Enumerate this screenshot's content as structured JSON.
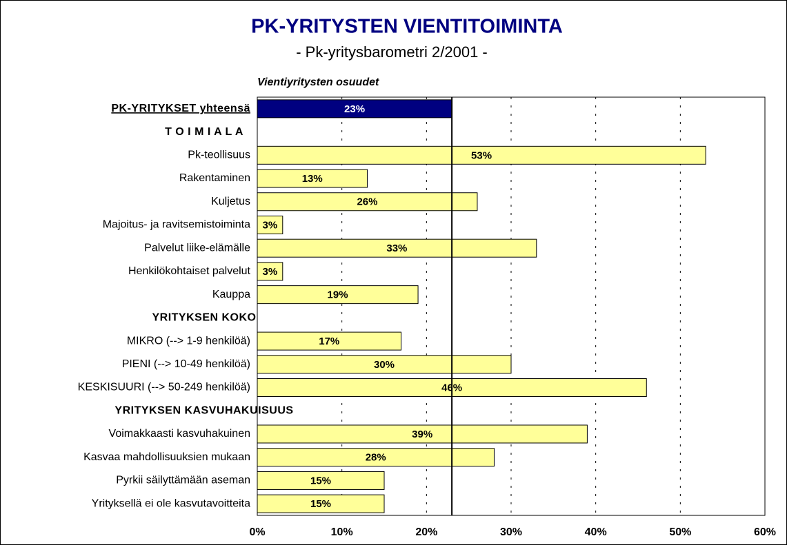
{
  "chart_data": {
    "type": "hbar",
    "title": "PK-YRITYSTEN VIENTITOIMINTA",
    "subtitle": "- Pk-yritysbarometri 2/2001 -",
    "axis_title": "Vientiyritysten osuudet",
    "categories": [
      "PK-YRITYKSET yhteensä",
      "T O I M I A L A",
      "Pk-teollisuus",
      "Rakentaminen",
      "Kuljetus",
      "Majoitus- ja ravitsemistoiminta",
      "Palvelut liike-elämälle",
      "Henkilökohtaiset palvelut",
      "Kauppa",
      "YRITYKSEN KOKO",
      "MIKRO (--> 1-9 henkilöä)",
      "PIENI (--> 10-49 henkilöä)",
      "KESKISUURI (--> 50-249 henkilöä)",
      "YRITYKSEN KASVUHAKUISUUS",
      "Voimakkaasti kasvuhakuinen",
      "Kasvaa mahdollisuuksien mukaan",
      "Pyrkii säilyttämään aseman",
      "Yrityksellä ei ole kasvutavoitteita"
    ],
    "series": [
      {
        "values": [
          23,
          null,
          53,
          13,
          26,
          3,
          33,
          3,
          19,
          null,
          17,
          30,
          46,
          null,
          39,
          28,
          15,
          15
        ],
        "value_labels": [
          "23%",
          null,
          "53%",
          "13%",
          "26%",
          "3%",
          "33%",
          "3%",
          "19%",
          null,
          "17%",
          "30%",
          "46%",
          null,
          "39%",
          "28%",
          "15%",
          "15%"
        ],
        "colors": [
          "#000080",
          null,
          "#ffff99",
          "#ffff99",
          "#ffff99",
          "#ffff99",
          "#ffff99",
          "#ffff99",
          "#ffff99",
          null,
          "#ffff99",
          "#ffff99",
          "#ffff99",
          null,
          "#ffff99",
          "#ffff99",
          "#ffff99",
          "#ffff99"
        ]
      }
    ],
    "xlim": [
      0,
      60
    ],
    "xticks": [
      {
        "value": 0,
        "label": "0%"
      },
      {
        "value": 10,
        "label": "10%"
      },
      {
        "value": 20,
        "label": "20%"
      },
      {
        "value": 30,
        "label": "30%"
      },
      {
        "value": 40,
        "label": "40%"
      },
      {
        "value": 50,
        "label": "50%"
      },
      {
        "value": 60,
        "label": "60%"
      }
    ],
    "grid": true
  }
}
